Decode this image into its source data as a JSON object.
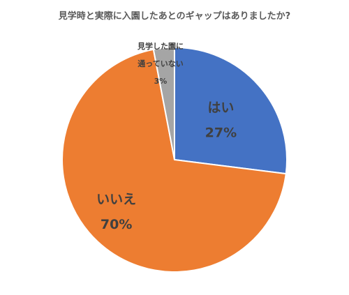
{
  "chart_data": {
    "type": "pie",
    "title": "見学時と実際に入園したあとのギャップはありましたか?",
    "slices": [
      {
        "label": "はい",
        "value": 27,
        "value_label": "27%",
        "color": "#4472c4"
      },
      {
        "label": "いいえ",
        "value": 70,
        "value_label": "70%",
        "color": "#ed7d31"
      },
      {
        "label_lines": [
          "見学した園に",
          "通っていない"
        ],
        "value": 3,
        "value_label": "3%",
        "color": "#a5a5a5"
      }
    ]
  }
}
